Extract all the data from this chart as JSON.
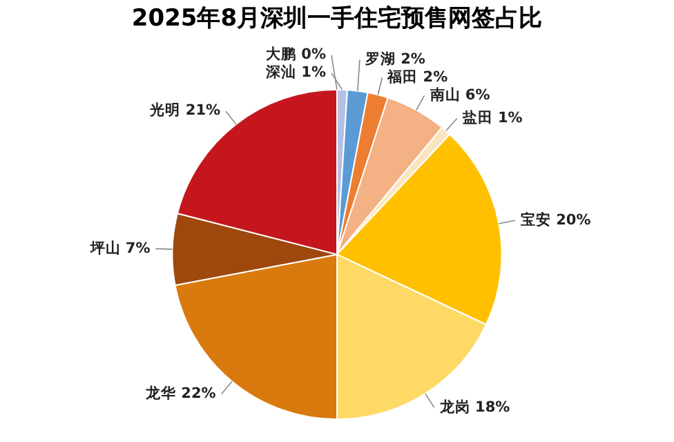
{
  "chart_data": {
    "type": "pie",
    "title": "2025年8月深圳一手住宅预售网签占比",
    "categories": [
      "大鹏",
      "深汕",
      "罗湖",
      "福田",
      "南山",
      "盐田",
      "宝安",
      "龙岗",
      "龙华",
      "坪山",
      "光明"
    ],
    "values": [
      0,
      1,
      2,
      2,
      6,
      1,
      20,
      18,
      22,
      7,
      21
    ],
    "value_labels": [
      "0%",
      "1%",
      "2%",
      "2%",
      "6%",
      "1%",
      "20%",
      "18%",
      "22%",
      "7%",
      "21%"
    ],
    "colors": [
      "#8fa3d9",
      "#b4c0e4",
      "#5b9bd5",
      "#ed7d31",
      "#f4b183",
      "#fbe5c0",
      "#ffc000",
      "#ffd966",
      "#d97a0e",
      "#9e480e",
      "#c5161d"
    ]
  }
}
